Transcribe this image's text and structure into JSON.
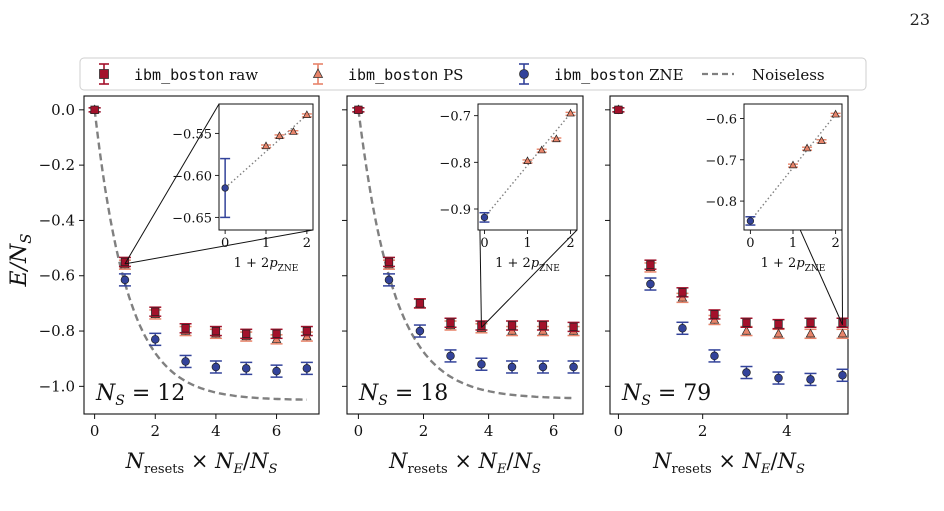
{
  "page_number": "23",
  "colors": {
    "raw": "#a3112b",
    "ps": "#e8846a",
    "zne": "#33439a",
    "noiseless": "#808080"
  },
  "legend": [
    {
      "key": "raw",
      "mono": "ibm_boston",
      "text": " raw"
    },
    {
      "key": "ps",
      "mono": "ibm_boston",
      "text": " PS"
    },
    {
      "key": "zne",
      "mono": "ibm_boston",
      "text": " ZNE"
    },
    {
      "key": "noiseless",
      "mono": "",
      "text": "Noiseless"
    }
  ],
  "chart_data": [
    {
      "type": "scatter",
      "label": "N_S = 12",
      "xlabel": "N_resets × N_E/N_S",
      "ylabel": "E/N_S",
      "xlim": [
        -0.35,
        7.4
      ],
      "ylim": [
        -1.1,
        0.05
      ],
      "xticks": [
        "0",
        "2",
        "4",
        "6"
      ],
      "yticks": [
        "0.0",
        "−0.2",
        "−0.4",
        "−0.6",
        "−0.8",
        "−1.0"
      ],
      "x": [
        0,
        1,
        2,
        3,
        4,
        5,
        6,
        7
      ],
      "raw": [
        0.0,
        -0.55,
        -0.73,
        -0.79,
        -0.8,
        -0.81,
        -0.81,
        -0.8
      ],
      "ps": [
        0.0,
        -0.56,
        -0.74,
        -0.8,
        -0.81,
        -0.82,
        -0.83,
        -0.82
      ],
      "zne": [
        0.0,
        -0.615,
        -0.83,
        -0.91,
        -0.93,
        -0.935,
        -0.945,
        -0.935
      ],
      "noiseless_asymptote": -1.05,
      "inset": {
        "xlabel": "1 + 2p_ZNE",
        "xticks": [
          "0",
          "1",
          "2"
        ],
        "yticks": [
          "−0.55",
          "−0.60",
          "−0.65"
        ],
        "xlim": [
          -0.15,
          2.15
        ],
        "ylim": [
          -0.665,
          -0.515
        ],
        "zne": {
          "x": 0,
          "y": -0.615,
          "err": 0.035
        },
        "points": [
          {
            "x": 1,
            "y": -0.565
          },
          {
            "x": 1.33,
            "y": -0.553
          },
          {
            "x": 1.67,
            "y": -0.548
          },
          {
            "x": 2,
            "y": -0.528
          }
        ]
      }
    },
    {
      "type": "scatter",
      "label": "N_S = 18",
      "xlabel": "N_resets × N_E/N_S",
      "xlim": [
        -0.35,
        6.9
      ],
      "ylim": [
        -1.1,
        0.05
      ],
      "xticks": [
        "0",
        "2",
        "4",
        "6"
      ],
      "x": [
        0,
        0.94,
        1.89,
        2.83,
        3.78,
        4.72,
        5.67,
        6.61
      ],
      "raw": [
        0.0,
        -0.55,
        -0.7,
        -0.77,
        -0.78,
        -0.78,
        -0.78,
        -0.785
      ],
      "ps": [
        0.0,
        -0.56,
        -0.7,
        -0.78,
        -0.79,
        -0.8,
        -0.8,
        -0.8
      ],
      "zne": [
        0.0,
        -0.615,
        -0.8,
        -0.89,
        -0.92,
        -0.93,
        -0.93,
        -0.93
      ],
      "noiseless_asymptote": -1.045,
      "inset": {
        "xlabel": "1 + 2p_ZNE",
        "xticks": [
          "0",
          "1",
          "2"
        ],
        "yticks": [
          "−0.7",
          "−0.8",
          "−0.9"
        ],
        "xlim": [
          -0.15,
          2.15
        ],
        "ylim": [
          -0.945,
          -0.675
        ],
        "zne": {
          "x": 0,
          "y": -0.918,
          "err": 0.01
        },
        "points": [
          {
            "x": 1,
            "y": -0.797
          },
          {
            "x": 1.33,
            "y": -0.774
          },
          {
            "x": 1.67,
            "y": -0.75
          },
          {
            "x": 2,
            "y": -0.695
          }
        ]
      }
    },
    {
      "type": "scatter",
      "label": "N_S = 79",
      "xlabel": "N_resets × N_E/N_S",
      "xlim": [
        -0.2,
        5.45
      ],
      "ylim": [
        -1.1,
        0.05
      ],
      "xticks": [
        "0",
        "2",
        "4"
      ],
      "x": [
        0,
        0.76,
        1.52,
        2.28,
        3.04,
        3.8,
        4.56,
        5.32
      ],
      "raw": [
        0.0,
        -0.56,
        -0.66,
        -0.74,
        -0.77,
        -0.775,
        -0.77,
        -0.77
      ],
      "ps": [
        0.0,
        -0.57,
        -0.68,
        -0.76,
        -0.8,
        -0.81,
        -0.81,
        -0.81
      ],
      "zne": [
        0.0,
        -0.63,
        -0.79,
        -0.89,
        -0.95,
        -0.97,
        -0.975,
        -0.96
      ],
      "noiseless_asymptote": null,
      "inset": {
        "xlabel": "1 + 2p_ZNE",
        "xticks": [
          "0",
          "1",
          "2"
        ],
        "yticks": [
          "−0.6",
          "−0.7",
          "−0.8"
        ],
        "xlim": [
          -0.15,
          2.15
        ],
        "ylim": [
          -0.87,
          -0.565
        ],
        "zne": {
          "x": 0,
          "y": -0.848,
          "err": 0.01
        },
        "points": [
          {
            "x": 1,
            "y": -0.713
          },
          {
            "x": 1.33,
            "y": -0.672
          },
          {
            "x": 1.67,
            "y": -0.654
          },
          {
            "x": 2,
            "y": -0.59
          }
        ]
      }
    }
  ]
}
